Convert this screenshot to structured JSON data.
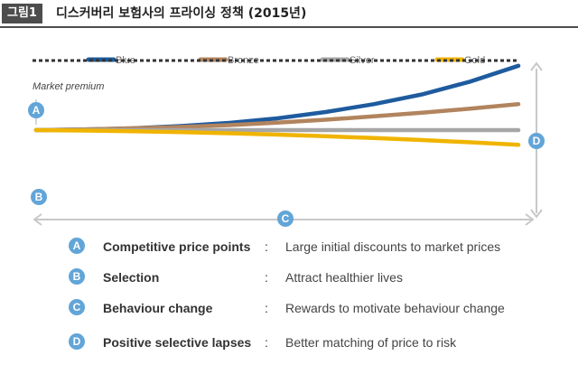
{
  "header": {
    "figure_label": "그림1",
    "title": "디스커버리 보험사의 프라이싱 정책 (2015년)"
  },
  "chart_data": {
    "type": "line",
    "title": "",
    "xlabel": "",
    "ylabel": "",
    "x": [
      0,
      1,
      2,
      3,
      4,
      5,
      6,
      7,
      8,
      9,
      10
    ],
    "ylim": [
      -10,
      45
    ],
    "grid": false,
    "legend_position": "top",
    "market_premium": {
      "label": "Market premium",
      "value": 30,
      "color": "#333333"
    },
    "series": [
      {
        "name": "Blue",
        "color": "#1e5b9e",
        "values": [
          0,
          0.3,
          0.8,
          1.8,
          3.2,
          5.2,
          8,
          11.5,
          15.8,
          21.5,
          28.5
        ]
      },
      {
        "name": "Bronze",
        "color": "#b2845e",
        "values": [
          0,
          0.3,
          0.8,
          1.4,
          2.2,
          3.3,
          4.6,
          6.1,
          7.7,
          9.5,
          11.5
        ]
      },
      {
        "name": "Silver",
        "color": "#a6a6a6",
        "values": [
          0,
          0,
          0,
          0,
          0,
          0,
          0,
          0,
          0,
          0,
          0
        ]
      },
      {
        "name": "Gold",
        "color": "#f0b400",
        "values": [
          0,
          -0.2,
          -0.5,
          -0.9,
          -1.4,
          -2.0,
          -2.7,
          -3.5,
          -4.4,
          -5.4,
          -6.5
        ]
      }
    ],
    "annotations": [
      {
        "marker": "A",
        "meaning": "gap between market premium and initial price"
      },
      {
        "marker": "B",
        "meaning": "selection"
      },
      {
        "marker": "C",
        "meaning": "time span"
      },
      {
        "marker": "D",
        "meaning": "spread between tiers at end"
      }
    ],
    "badge_color": "#62a5d8",
    "arrow_color": "#c8c8c8"
  },
  "rows": [
    {
      "badge": "A",
      "term": "Competitive price points",
      "colon": ":",
      "desc": "Large initial discounts to market prices"
    },
    {
      "badge": "B",
      "term": "Selection",
      "colon": ":",
      "desc": "Attract healthier lives"
    },
    {
      "badge": "C",
      "term": "Behaviour change",
      "colon": ":",
      "desc": "Rewards to motivate behaviour change"
    },
    {
      "badge": "D",
      "term": "Positive selective lapses",
      "colon": ":",
      "desc": "Better matching of price to risk"
    }
  ]
}
